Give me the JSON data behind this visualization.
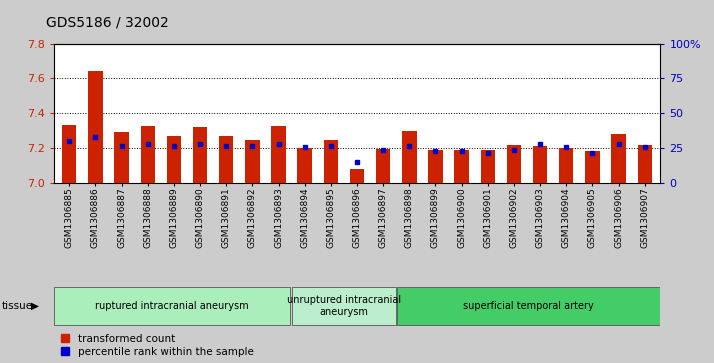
{
  "title": "GDS5186 / 32002",
  "samples": [
    "GSM1306885",
    "GSM1306886",
    "GSM1306887",
    "GSM1306888",
    "GSM1306889",
    "GSM1306890",
    "GSM1306891",
    "GSM1306892",
    "GSM1306893",
    "GSM1306894",
    "GSM1306895",
    "GSM1306896",
    "GSM1306897",
    "GSM1306898",
    "GSM1306899",
    "GSM1306900",
    "GSM1306901",
    "GSM1306902",
    "GSM1306903",
    "GSM1306904",
    "GSM1306905",
    "GSM1306906",
    "GSM1306907"
  ],
  "red_values": [
    7.335,
    7.645,
    7.295,
    7.33,
    7.27,
    7.32,
    7.27,
    7.25,
    7.33,
    7.2,
    7.25,
    7.08,
    7.195,
    7.3,
    7.19,
    7.19,
    7.19,
    7.22,
    7.215,
    7.205,
    7.185,
    7.28,
    7.22
  ],
  "blue_values": [
    30,
    33,
    27,
    28,
    27,
    28,
    27,
    27,
    28,
    26,
    27,
    15,
    24,
    27,
    23,
    23,
    22,
    24,
    28,
    26,
    22,
    28,
    26
  ],
  "ylim_left": [
    7.0,
    7.8
  ],
  "ylim_right": [
    0,
    100
  ],
  "yticks_left": [
    7.0,
    7.2,
    7.4,
    7.6,
    7.8
  ],
  "yticks_right": [
    0,
    25,
    50,
    75,
    100
  ],
  "ytick_labels_right": [
    "0",
    "25",
    "50",
    "75",
    "100%"
  ],
  "groups": [
    {
      "label": "ruptured intracranial aneurysm",
      "start": 0,
      "end": 9,
      "color": "#AAEEBB"
    },
    {
      "label": "unruptured intracranial\naneurysm",
      "start": 9,
      "end": 13,
      "color": "#BBEECC"
    },
    {
      "label": "superficial temporal artery",
      "start": 13,
      "end": 23,
      "color": "#44CC66"
    }
  ],
  "bar_color": "#CC2200",
  "dot_color": "#0000CC",
  "background_color": "#CCCCCC",
  "plot_bg_color": "#FFFFFF",
  "xticklabel_bg": "#DDDDDD",
  "title_fontsize": 10,
  "tick_fontsize": 7,
  "ylabel_left_color": "#CC2200",
  "ylabel_right_color": "#0000BB",
  "grid_color": "black",
  "grid_lw": 0.7
}
